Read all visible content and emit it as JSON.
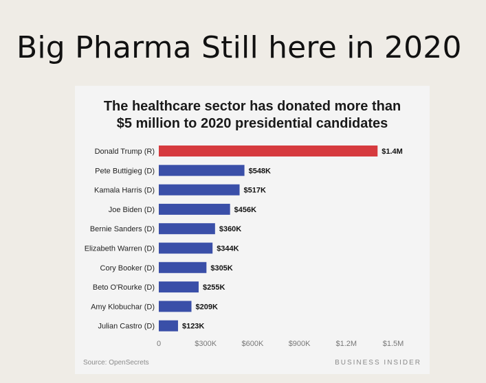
{
  "slide": {
    "title": "Big Pharma Still here in 2020"
  },
  "chart_data": {
    "type": "bar",
    "orientation": "horizontal",
    "title_lines": [
      "The healthcare sector has donated more than",
      "$5 million to 2020 presidential candidates"
    ],
    "categories": [
      "Donald Trump (R)",
      "Pete Buttigieg (D)",
      "Kamala Harris (D)",
      "Joe Biden (D)",
      "Bernie Sanders (D)",
      "Elizabeth Warren (D)",
      "Cory Booker (D)",
      "Beto O'Rourke (D)",
      "Amy Klobuchar (D)",
      "Julian Castro (D)"
    ],
    "values": [
      1400000,
      548000,
      517000,
      456000,
      360000,
      344000,
      305000,
      255000,
      209000,
      123000
    ],
    "value_labels": [
      "$1.4M",
      "$548K",
      "$517K",
      "$456K",
      "$360K",
      "$344K",
      "$305K",
      "$255K",
      "$209K",
      "$123K"
    ],
    "bar_colors": [
      "#d63a3e",
      "#3a4fa8",
      "#3a4fa8",
      "#3a4fa8",
      "#3a4fa8",
      "#3a4fa8",
      "#3a4fa8",
      "#3a4fa8",
      "#3a4fa8",
      "#3a4fa8"
    ],
    "xlim": [
      0,
      1500000
    ],
    "x_ticks": [
      0,
      300000,
      600000,
      900000,
      1200000,
      1500000
    ],
    "x_tick_labels": [
      "0",
      "$300K",
      "$600K",
      "$900K",
      "$1.2M",
      "$1.5M"
    ],
    "grid": false,
    "source": "Source: OpenSecrets",
    "brand": "BUSINESS INSIDER"
  }
}
